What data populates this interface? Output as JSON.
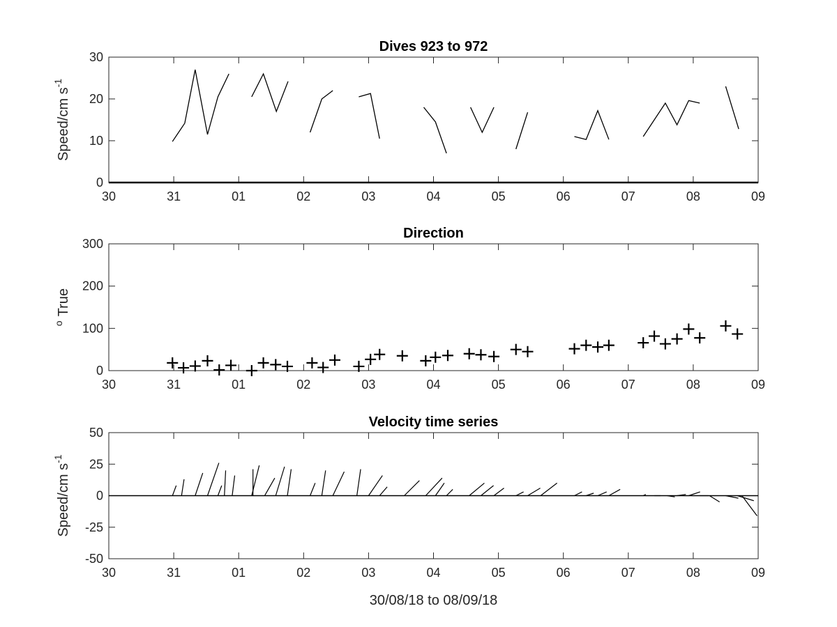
{
  "chart_data": [
    {
      "type": "line",
      "title": "Dives 923 to 972",
      "ylabel": "Speed/cm s",
      "ylabel_sup": "-1",
      "xlim": [
        0,
        10
      ],
      "ylim": [
        0,
        30
      ],
      "xticks": [
        "30",
        "31",
        "01",
        "02",
        "03",
        "04",
        "05",
        "06",
        "07",
        "08",
        "09"
      ],
      "yticks": [
        "0",
        "10",
        "20",
        "30"
      ],
      "segments": [
        {
          "x": [
            0.98,
            1.17,
            1.33,
            1.52,
            1.68,
            1.85
          ],
          "y": [
            9.8,
            14.2,
            27.0,
            11.5,
            20.5,
            26.0
          ]
        },
        {
          "x": [
            2.2,
            2.38,
            2.58,
            2.76
          ],
          "y": [
            20.5,
            26.0,
            17.0,
            24.2
          ]
        },
        {
          "x": [
            3.1,
            3.28,
            3.45
          ],
          "y": [
            12.0,
            20.0,
            22.0
          ]
        },
        {
          "x": [
            3.85,
            4.03,
            4.17
          ],
          "y": [
            20.5,
            21.3,
            10.5
          ]
        },
        {
          "x": [
            4.85,
            5.03,
            5.2
          ],
          "y": [
            18.0,
            14.5,
            7.0
          ]
        },
        {
          "x": [
            5.57,
            5.75,
            5.93
          ],
          "y": [
            18.0,
            12.0,
            18.0
          ]
        },
        {
          "x": [
            6.27,
            6.45
          ],
          "y": [
            8.0,
            16.8
          ]
        },
        {
          "x": [
            7.17,
            7.35,
            7.53,
            7.7
          ],
          "y": [
            11.0,
            10.3,
            17.2,
            10.3
          ]
        },
        {
          "x": [
            8.23,
            8.57,
            8.75,
            8.93,
            9.1
          ],
          "y": [
            11.0,
            19.0,
            13.8,
            19.6,
            19.0
          ]
        },
        {
          "x": [
            9.5,
            9.7
          ],
          "y": [
            23.0,
            12.8
          ]
        }
      ]
    },
    {
      "type": "scatter",
      "title": "Direction",
      "ylabel": "True",
      "ylabel_sup": "o",
      "xlim": [
        0,
        10
      ],
      "ylim": [
        0,
        360
      ],
      "xticks": [
        "30",
        "31",
        "01",
        "02",
        "03",
        "04",
        "05",
        "06",
        "07",
        "08",
        "09"
      ],
      "yticks": [
        "0",
        "100",
        "200",
        "300"
      ],
      "points": [
        [
          0.98,
          22
        ],
        [
          1.15,
          8
        ],
        [
          1.33,
          13
        ],
        [
          1.52,
          28
        ],
        [
          1.7,
          2
        ],
        [
          1.88,
          15
        ],
        [
          2.2,
          0
        ],
        [
          2.38,
          22
        ],
        [
          2.57,
          17
        ],
        [
          2.75,
          12
        ],
        [
          3.13,
          22
        ],
        [
          3.3,
          9
        ],
        [
          3.48,
          30
        ],
        [
          3.85,
          12
        ],
        [
          4.03,
          32
        ],
        [
          4.17,
          46
        ],
        [
          4.52,
          42
        ],
        [
          4.88,
          28
        ],
        [
          5.03,
          38
        ],
        [
          5.22,
          43
        ],
        [
          5.55,
          48
        ],
        [
          5.73,
          45
        ],
        [
          5.93,
          40
        ],
        [
          6.27,
          60
        ],
        [
          6.45,
          54
        ],
        [
          7.17,
          62
        ],
        [
          7.35,
          72
        ],
        [
          7.53,
          67
        ],
        [
          7.7,
          72
        ],
        [
          8.23,
          79
        ],
        [
          8.4,
          98
        ],
        [
          8.57,
          76
        ],
        [
          8.75,
          90
        ],
        [
          8.93,
          118
        ],
        [
          9.1,
          93
        ],
        [
          9.5,
          127
        ],
        [
          9.68,
          104
        ]
      ]
    },
    {
      "type": "quiver",
      "title": "Velocity time series",
      "ylabel": "Speed/cm s",
      "ylabel_sup": "-1",
      "xlabel": "30/08/18 to 08/09/18",
      "xlim": [
        0,
        10
      ],
      "ylim": [
        -50,
        50
      ],
      "xticks": [
        "30",
        "31",
        "01",
        "02",
        "03",
        "04",
        "05",
        "06",
        "07",
        "08",
        "09"
      ],
      "yticks": [
        "-50",
        "-25",
        "0",
        "25",
        "50"
      ],
      "vectors": [
        [
          0.98,
          3,
          8
        ],
        [
          1.12,
          2,
          13
        ],
        [
          1.33,
          6,
          18
        ],
        [
          1.52,
          9,
          26
        ],
        [
          1.68,
          3,
          8
        ],
        [
          1.78,
          1,
          20
        ],
        [
          1.9,
          2,
          16
        ],
        [
          2.2,
          6,
          24
        ],
        [
          2.22,
          0,
          21
        ],
        [
          2.4,
          8,
          14
        ],
        [
          2.57,
          7,
          23
        ],
        [
          2.75,
          3,
          21
        ],
        [
          3.1,
          4,
          10
        ],
        [
          3.28,
          3,
          20
        ],
        [
          3.45,
          9,
          19
        ],
        [
          3.82,
          3,
          21
        ],
        [
          4.0,
          11,
          16
        ],
        [
          4.17,
          6,
          7
        ],
        [
          4.55,
          12,
          12
        ],
        [
          4.88,
          13,
          14
        ],
        [
          5.03,
          7,
          10
        ],
        [
          5.2,
          5,
          5
        ],
        [
          5.55,
          12,
          10
        ],
        [
          5.73,
          10,
          8
        ],
        [
          5.93,
          8,
          6
        ],
        [
          6.27,
          6,
          3
        ],
        [
          6.45,
          10,
          6
        ],
        [
          6.65,
          13,
          10
        ],
        [
          7.17,
          6,
          3
        ],
        [
          7.35,
          6,
          2
        ],
        [
          7.53,
          7,
          3
        ],
        [
          7.7,
          9,
          5
        ],
        [
          8.23,
          2,
          1
        ],
        [
          8.4,
          5,
          0
        ],
        [
          8.6,
          6,
          -1
        ],
        [
          8.75,
          7,
          1
        ],
        [
          8.93,
          9,
          3
        ],
        [
          9.1,
          7,
          0
        ],
        [
          9.25,
          8,
          -5
        ],
        [
          9.5,
          10,
          -2
        ],
        [
          9.68,
          13,
          -4
        ],
        [
          9.75,
          12,
          -16
        ]
      ]
    }
  ]
}
